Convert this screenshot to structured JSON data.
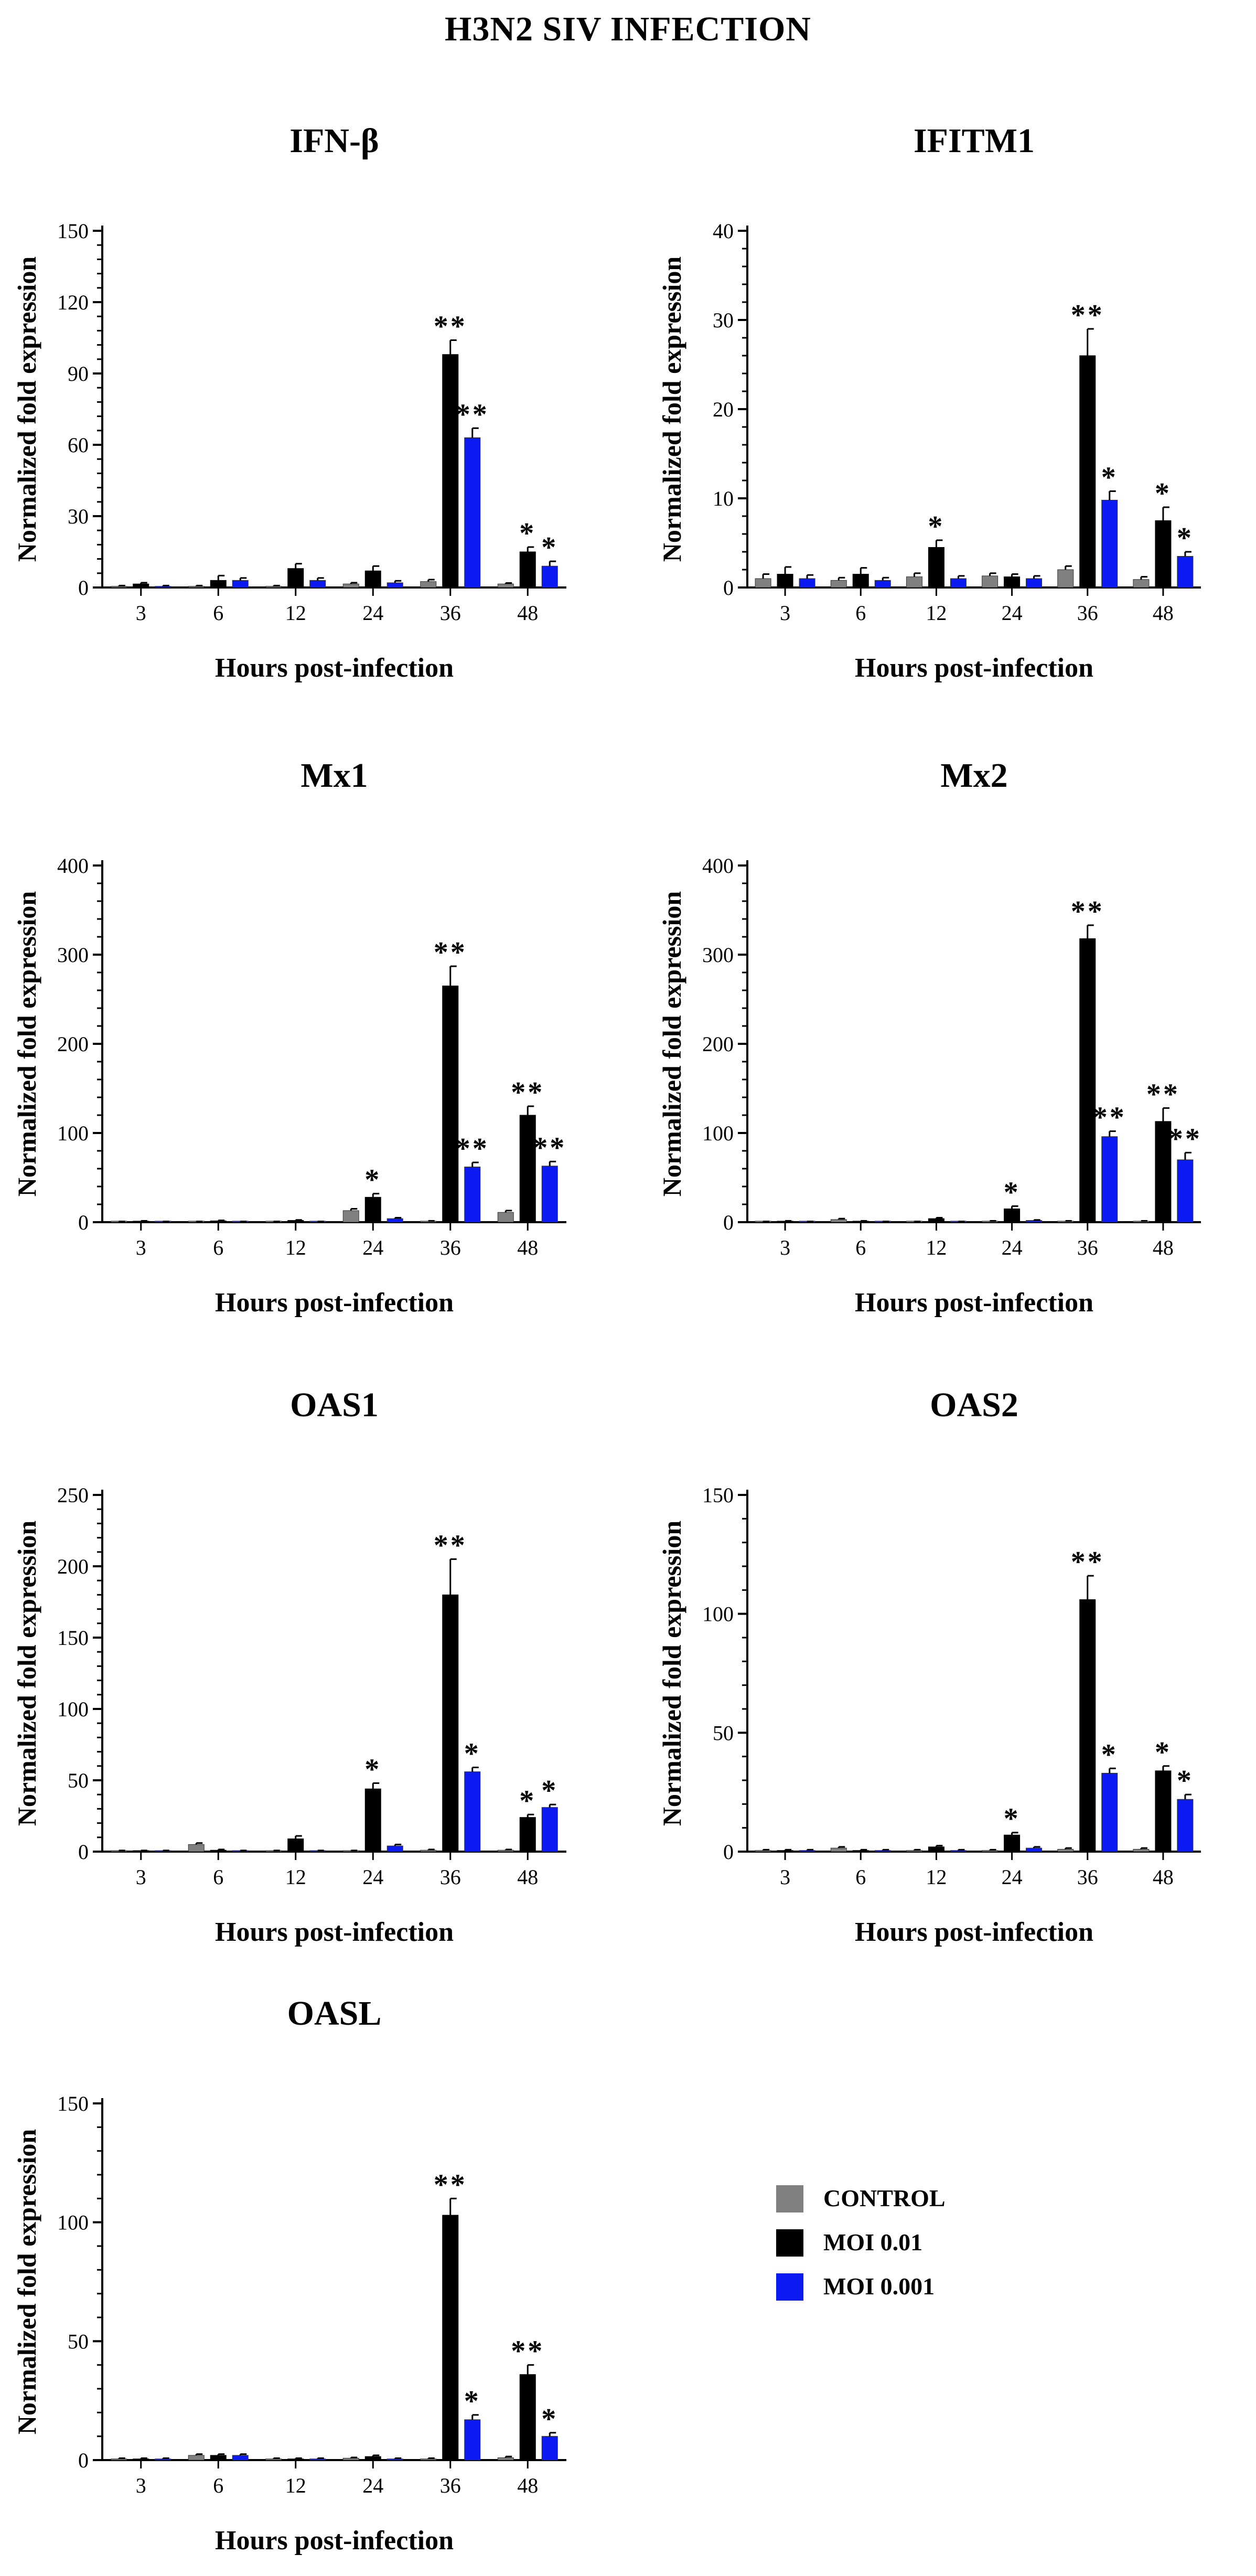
{
  "figure": {
    "title": "H3N2 SIV INFECTION",
    "legend": [
      {
        "label": "CONTROL",
        "color": "#808080"
      },
      {
        "label": "MOI 0.01",
        "color": "#000000"
      },
      {
        "label": "MOI 0.001",
        "color": "#0a1af0"
      }
    ]
  },
  "chart_data": [
    {
      "type": "bar",
      "title": "IFN-β",
      "xlabel": "Hours post-infection",
      "ylabel": "Normalized fold expression",
      "categories": [
        "3",
        "6",
        "12",
        "24",
        "36",
        "48"
      ],
      "ylim": [
        0,
        150
      ],
      "yticks": [
        0,
        30,
        60,
        90,
        120,
        150
      ],
      "series": [
        {
          "name": "CONTROL",
          "color": "#808080",
          "values": [
            0.5,
            0.5,
            0.5,
            1.5,
            2.5,
            1.5
          ],
          "errors": [
            0.3,
            0.3,
            0.3,
            0.5,
            0.8,
            0.4
          ],
          "stars": [
            "",
            "",
            "",
            "",
            "",
            ""
          ]
        },
        {
          "name": "MOI 0.01",
          "color": "#000000",
          "values": [
            1.5,
            3,
            8,
            7,
            98,
            15
          ],
          "errors": [
            0.5,
            2,
            2,
            2,
            6,
            2
          ],
          "stars": [
            "",
            "",
            "",
            "",
            "**",
            "*"
          ]
        },
        {
          "name": "MOI 0.001",
          "color": "#0a1af0",
          "values": [
            0.5,
            3,
            3,
            2,
            63,
            9
          ],
          "errors": [
            0.3,
            1,
            1,
            0.8,
            4,
            2
          ],
          "stars": [
            "",
            "",
            "",
            "",
            "**",
            "*"
          ]
        }
      ]
    },
    {
      "type": "bar",
      "title": "IFITM1",
      "xlabel": "Hours post-infection",
      "ylabel": "Normalized fold expression",
      "categories": [
        "3",
        "6",
        "12",
        "24",
        "36",
        "48"
      ],
      "ylim": [
        0,
        40
      ],
      "yticks": [
        0,
        10,
        20,
        30,
        40
      ],
      "series": [
        {
          "name": "CONTROL",
          "color": "#808080",
          "values": [
            1,
            0.8,
            1.2,
            1.3,
            2,
            0.9
          ],
          "errors": [
            0.5,
            0.3,
            0.4,
            0.3,
            0.4,
            0.3
          ],
          "stars": [
            "",
            "",
            "",
            "",
            "",
            ""
          ]
        },
        {
          "name": "MOI 0.01",
          "color": "#000000",
          "values": [
            1.5,
            1.5,
            4.5,
            1.2,
            26,
            7.5
          ],
          "errors": [
            0.8,
            0.7,
            0.8,
            0.3,
            3,
            1.5
          ],
          "stars": [
            "",
            "",
            "*",
            "",
            "**",
            "*"
          ]
        },
        {
          "name": "MOI 0.001",
          "color": "#0a1af0",
          "values": [
            1,
            0.8,
            1,
            1,
            9.8,
            3.5
          ],
          "errors": [
            0.4,
            0.3,
            0.3,
            0.3,
            1,
            0.5
          ],
          "stars": [
            "",
            "",
            "",
            "",
            "*",
            "*"
          ]
        }
      ]
    },
    {
      "type": "bar",
      "title": "Mx1",
      "xlabel": "Hours post-infection",
      "ylabel": "Normalized fold expression",
      "categories": [
        "3",
        "6",
        "12",
        "24",
        "36",
        "48"
      ],
      "ylim": [
        0,
        400
      ],
      "yticks": [
        0,
        100,
        200,
        300,
        400
      ],
      "series": [
        {
          "name": "CONTROL",
          "color": "#808080",
          "values": [
            0.5,
            0.5,
            0.5,
            13,
            1,
            11
          ],
          "errors": [
            0.3,
            0.3,
            0.3,
            2,
            0.5,
            2
          ],
          "stars": [
            "",
            "",
            "",
            "",
            "",
            ""
          ]
        },
        {
          "name": "MOI 0.01",
          "color": "#000000",
          "values": [
            1,
            1.5,
            2,
            28,
            265,
            120
          ],
          "errors": [
            0.5,
            0.5,
            0.5,
            4,
            22,
            10
          ],
          "stars": [
            "",
            "",
            "",
            "*",
            "**",
            "**"
          ]
        },
        {
          "name": "MOI 0.001",
          "color": "#0a1af0",
          "values": [
            0.5,
            0.5,
            0.5,
            4,
            62,
            63
          ],
          "errors": [
            0.3,
            0.3,
            0.3,
            1,
            5,
            5
          ],
          "stars": [
            "",
            "",
            "",
            "",
            "**",
            "**"
          ]
        }
      ]
    },
    {
      "type": "bar",
      "title": "Mx2",
      "xlabel": "Hours post-infection",
      "ylabel": "Normalized fold expression",
      "categories": [
        "3",
        "6",
        "12",
        "24",
        "36",
        "48"
      ],
      "ylim": [
        0,
        400
      ],
      "yticks": [
        0,
        100,
        200,
        300,
        400
      ],
      "series": [
        {
          "name": "CONTROL",
          "color": "#808080",
          "values": [
            0.5,
            3,
            0.5,
            1,
            1,
            1
          ],
          "errors": [
            0.3,
            1,
            0.3,
            0.5,
            0.5,
            0.5
          ],
          "stars": [
            "",
            "",
            "",
            "",
            "",
            ""
          ]
        },
        {
          "name": "MOI 0.01",
          "color": "#000000",
          "values": [
            1,
            1,
            4,
            15,
            318,
            113
          ],
          "errors": [
            0.5,
            0.5,
            1,
            3,
            15,
            15
          ],
          "stars": [
            "",
            "",
            "",
            "*",
            "**",
            "**"
          ]
        },
        {
          "name": "MOI 0.001",
          "color": "#0a1af0",
          "values": [
            0.5,
            0.5,
            0.5,
            2,
            96,
            70
          ],
          "errors": [
            0.3,
            0.3,
            0.3,
            0.5,
            6,
            8
          ],
          "stars": [
            "",
            "",
            "",
            "",
            "**",
            "**"
          ]
        }
      ]
    },
    {
      "type": "bar",
      "title": "OAS1",
      "xlabel": "Hours post-infection",
      "ylabel": "Normalized fold expression",
      "categories": [
        "3",
        "6",
        "12",
        "24",
        "36",
        "48"
      ],
      "ylim": [
        0,
        250
      ],
      "yticks": [
        0,
        50,
        100,
        150,
        200,
        250
      ],
      "series": [
        {
          "name": "CONTROL",
          "color": "#808080",
          "values": [
            0.5,
            5,
            0.5,
            0.5,
            1,
            1
          ],
          "errors": [
            0.3,
            1,
            0.3,
            0.3,
            0.5,
            0.5
          ],
          "stars": [
            "",
            "",
            "",
            "",
            "",
            ""
          ]
        },
        {
          "name": "MOI 0.01",
          "color": "#000000",
          "values": [
            0.5,
            1,
            9,
            44,
            180,
            24
          ],
          "errors": [
            0.3,
            0.5,
            2,
            4,
            25,
            2
          ],
          "stars": [
            "",
            "",
            "",
            "*",
            "**",
            "*"
          ]
        },
        {
          "name": "MOI 0.001",
          "color": "#0a1af0",
          "values": [
            0.5,
            0.5,
            0.5,
            4,
            56,
            31
          ],
          "errors": [
            0.3,
            0.3,
            0.3,
            1,
            3,
            2
          ],
          "stars": [
            "",
            "",
            "",
            "",
            "*",
            "*"
          ]
        }
      ]
    },
    {
      "type": "bar",
      "title": "OAS2",
      "xlabel": "Hours post-infection",
      "ylabel": "Normalized fold expression",
      "categories": [
        "3",
        "6",
        "12",
        "24",
        "36",
        "48"
      ],
      "ylim": [
        0,
        150
      ],
      "yticks": [
        0,
        50,
        100,
        150
      ],
      "series": [
        {
          "name": "CONTROL",
          "color": "#808080",
          "values": [
            0.5,
            1.5,
            0.5,
            0.5,
            1,
            1
          ],
          "errors": [
            0.3,
            0.5,
            0.3,
            0.3,
            0.5,
            0.5
          ],
          "stars": [
            "",
            "",
            "",
            "",
            "",
            ""
          ]
        },
        {
          "name": "MOI 0.01",
          "color": "#000000",
          "values": [
            0.5,
            0.5,
            2,
            7,
            106,
            34
          ],
          "errors": [
            0.3,
            0.3,
            0.5,
            1,
            10,
            2
          ],
          "stars": [
            "",
            "",
            "",
            "*",
            "**",
            "*"
          ]
        },
        {
          "name": "MOI 0.001",
          "color": "#0a1af0",
          "values": [
            0.5,
            0.5,
            0.5,
            1.5,
            33,
            22
          ],
          "errors": [
            0.3,
            0.3,
            0.3,
            0.5,
            2,
            2
          ],
          "stars": [
            "",
            "",
            "",
            "",
            "*",
            "*"
          ]
        }
      ]
    },
    {
      "type": "bar",
      "title": "OASL",
      "xlabel": "Hours post-infection",
      "ylabel": "Normalized fold expression",
      "categories": [
        "3",
        "6",
        "12",
        "24",
        "36",
        "48"
      ],
      "ylim": [
        0,
        150
      ],
      "yticks": [
        0,
        50,
        100,
        150
      ],
      "series": [
        {
          "name": "CONTROL",
          "color": "#808080",
          "values": [
            0.5,
            2,
            0.5,
            0.8,
            0.5,
            1
          ],
          "errors": [
            0.3,
            0.5,
            0.3,
            0.3,
            0.3,
            0.5
          ],
          "stars": [
            "",
            "",
            "",
            "",
            "",
            ""
          ]
        },
        {
          "name": "MOI 0.01",
          "color": "#000000",
          "values": [
            0.5,
            2,
            0.5,
            1.5,
            103,
            36
          ],
          "errors": [
            0.3,
            0.5,
            0.3,
            0.5,
            7,
            4
          ],
          "stars": [
            "",
            "",
            "",
            "",
            "**",
            "**"
          ]
        },
        {
          "name": "MOI 0.001",
          "color": "#0a1af0",
          "values": [
            0.5,
            2,
            0.5,
            0.5,
            17,
            10
          ],
          "errors": [
            0.3,
            0.5,
            0.3,
            0.3,
            2,
            1.5
          ],
          "stars": [
            "",
            "",
            "",
            "",
            "*",
            "*"
          ]
        }
      ]
    }
  ]
}
